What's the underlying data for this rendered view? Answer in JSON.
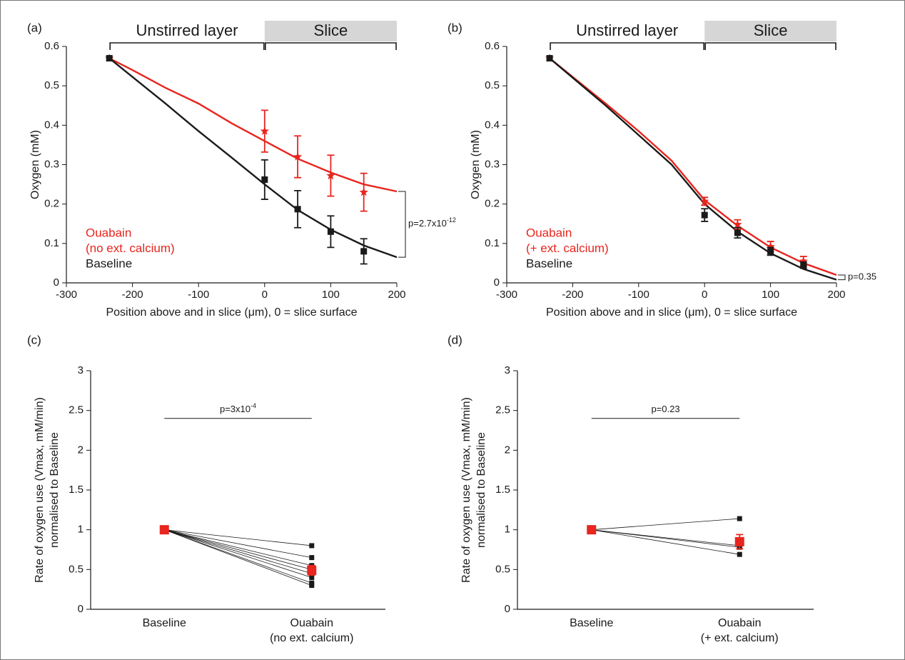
{
  "chart_data": [
    {
      "type": "line",
      "label": "(a)",
      "regions": [
        {
          "label": "Unstirred layer",
          "from": -235,
          "to": 0
        },
        {
          "label": "Slice",
          "from": 0,
          "to": 200,
          "shaded": true
        }
      ],
      "x_label": "Position above and in slice (μm), 0 = slice surface",
      "y_label": [
        "Oxygen (mM)"
      ],
      "xlim": [
        -300,
        200
      ],
      "xticks": [
        -300,
        -200,
        -100,
        0,
        100,
        200
      ],
      "ylim": [
        0,
        0.6
      ],
      "yticks": [
        0,
        0.1,
        0.2,
        0.3,
        0.4,
        0.5,
        0.6
      ],
      "legend": "lower left",
      "series": [
        {
          "name": [
            "Ouabain",
            "(no ext. calcium)"
          ],
          "color": "#e8251e",
          "marker": "star",
          "x": [
            -235,
            0,
            50,
            100,
            150
          ],
          "values": [
            0.57,
            0.385,
            0.32,
            0.272,
            0.23
          ],
          "errors": [
            null,
            0.053,
            0.053,
            0.052,
            0.048
          ]
        },
        {
          "name": [
            "Baseline"
          ],
          "color": "#1a1a1a",
          "marker": "square",
          "x": [
            -235,
            0,
            50,
            100,
            150
          ],
          "values": [
            0.57,
            0.262,
            0.187,
            0.13,
            0.08
          ],
          "errors": [
            null,
            0.05,
            0.047,
            0.04,
            0.032
          ]
        }
      ],
      "fits": [
        {
          "color": "#e8251e",
          "x": [
            -235,
            -200,
            -150,
            -100,
            -50,
            0,
            50,
            100,
            150,
            200
          ],
          "values": [
            0.57,
            0.54,
            0.495,
            0.455,
            0.405,
            0.36,
            0.315,
            0.28,
            0.25,
            0.232
          ]
        },
        {
          "color": "#1a1a1a",
          "x": [
            -235,
            -150,
            -100,
            -50,
            0,
            50,
            100,
            150,
            200
          ],
          "values": [
            0.57,
            0.455,
            0.385,
            0.318,
            0.25,
            0.185,
            0.135,
            0.095,
            0.065
          ]
        }
      ],
      "annotation": {
        "text": "p=2.7x10",
        "exponent": "-12"
      }
    },
    {
      "type": "line",
      "label": "(b)",
      "regions": [
        {
          "label": "Unstirred layer",
          "from": -235,
          "to": 0
        },
        {
          "label": "Slice",
          "from": 0,
          "to": 200,
          "shaded": true
        }
      ],
      "x_label": "Position above and in slice (μm), 0 = slice surface",
      "y_label": [
        "Oxygen (mM)"
      ],
      "xlim": [
        -300,
        200
      ],
      "xticks": [
        -300,
        -200,
        -100,
        0,
        100,
        200
      ],
      "ylim": [
        0,
        0.6
      ],
      "yticks": [
        0,
        0.1,
        0.2,
        0.3,
        0.4,
        0.5,
        0.6
      ],
      "legend": "lower left",
      "series": [
        {
          "name": [
            "Ouabain",
            "(+ ext. calcium)"
          ],
          "color": "#e8251e",
          "marker": "star",
          "x": [
            -235,
            0,
            50,
            100,
            150
          ],
          "values": [
            0.57,
            0.207,
            0.148,
            0.092,
            0.055
          ],
          "errors": [
            null,
            0.01,
            0.012,
            0.013,
            0.012
          ]
        },
        {
          "name": [
            "Baseline"
          ],
          "color": "#1a1a1a",
          "marker": "square",
          "x": [
            -235,
            0,
            50,
            100,
            150
          ],
          "values": [
            0.57,
            0.172,
            0.127,
            0.08,
            0.045
          ],
          "errors": [
            null,
            0.016,
            0.013,
            0.01,
            0.008
          ]
        }
      ],
      "fits": [
        {
          "color": "#e8251e",
          "x": [
            -235,
            -150,
            -100,
            -50,
            0,
            50,
            100,
            150,
            200
          ],
          "values": [
            0.57,
            0.455,
            0.385,
            0.31,
            0.21,
            0.145,
            0.09,
            0.05,
            0.02
          ]
        },
        {
          "color": "#1a1a1a",
          "x": [
            -235,
            -150,
            -100,
            -50,
            0,
            50,
            100,
            150,
            200
          ],
          "values": [
            0.57,
            0.45,
            0.375,
            0.3,
            0.2,
            0.13,
            0.075,
            0.035,
            0.008
          ]
        }
      ],
      "annotation": {
        "text": "p=0.35"
      }
    },
    {
      "type": "paired",
      "label": "(c)",
      "y_label": [
        "Rate of oxygen use (Vmax, mM/min)",
        "normalised to Baseline"
      ],
      "categories": [
        [
          "Baseline"
        ],
        [
          "Ouabain",
          "(no ext. calcium)"
        ]
      ],
      "ylim": [
        0,
        3
      ],
      "yticks": [
        0,
        0.5,
        1,
        1.5,
        2,
        2.5,
        3
      ],
      "individual": {
        "color": "#1a1a1a",
        "values": [
          [
            1,
            0.8
          ],
          [
            1,
            0.65
          ],
          [
            1,
            0.55
          ],
          [
            1,
            0.5
          ],
          [
            1,
            0.45
          ],
          [
            1,
            0.4
          ],
          [
            1,
            0.33
          ],
          [
            1,
            0.3
          ]
        ]
      },
      "mean": {
        "color": "#e8251e",
        "values": [
          1,
          0.49
        ],
        "errors": [
          null,
          0.06
        ]
      },
      "annotation": {
        "text": "p=3x10",
        "exponent": "-4",
        "y": 2.4
      }
    },
    {
      "type": "paired",
      "label": "(d)",
      "y_label": [
        "Rate of oxygen use (Vmax, mM/min)",
        "normalised to Baseline"
      ],
      "categories": [
        [
          "Baseline"
        ],
        [
          "Ouabain",
          "(+ ext. calcium)"
        ]
      ],
      "ylim": [
        0,
        3
      ],
      "yticks": [
        0,
        0.5,
        1,
        1.5,
        2,
        2.5,
        3
      ],
      "individual": {
        "color": "#1a1a1a",
        "values": [
          [
            1,
            1.14
          ],
          [
            1,
            0.8
          ],
          [
            1,
            0.78
          ],
          [
            1,
            0.69
          ]
        ]
      },
      "mean": {
        "color": "#e8251e",
        "values": [
          1,
          0.85
        ],
        "errors": [
          null,
          0.09
        ]
      },
      "annotation": {
        "text": "p=0.23",
        "y": 2.4
      }
    }
  ]
}
